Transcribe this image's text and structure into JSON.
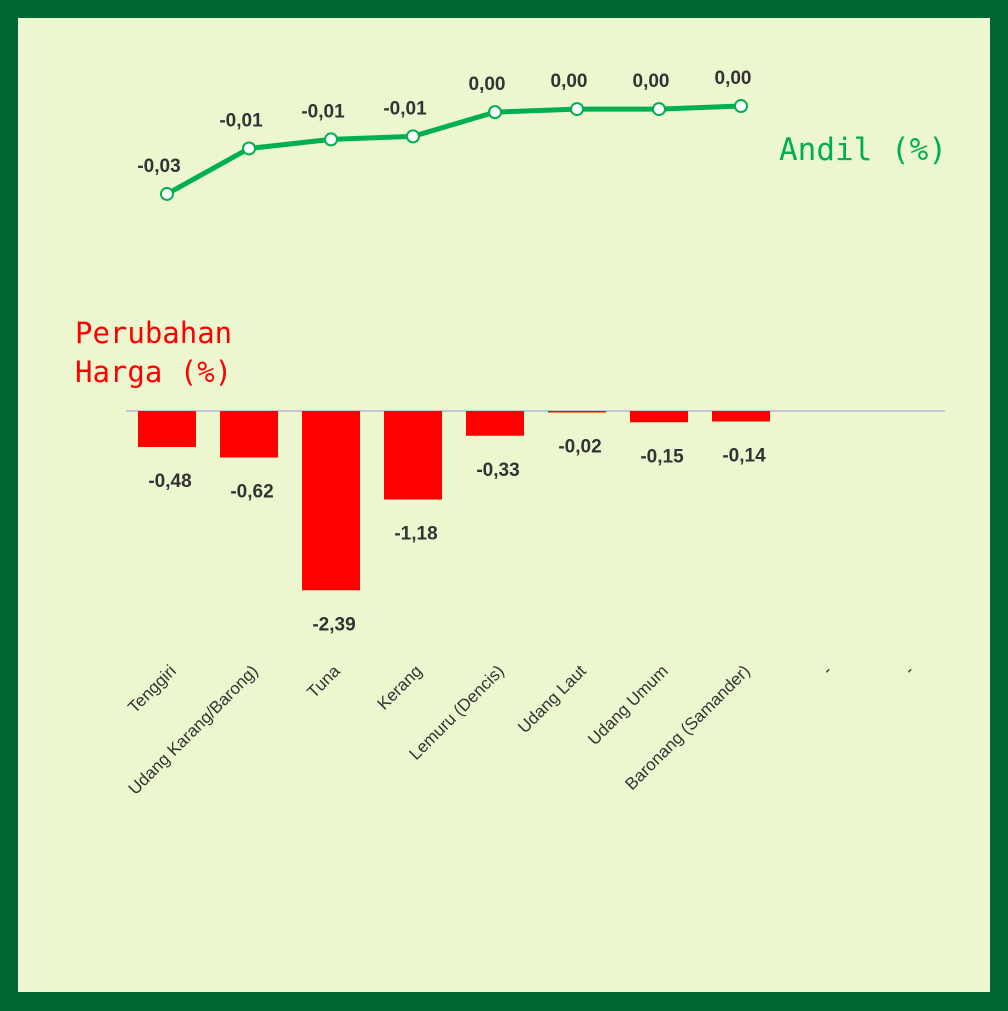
{
  "chart_data": [
    {
      "type": "line",
      "title": "Andil (%)",
      "color": "#00b050",
      "values": [
        -0.03,
        -0.015,
        -0.012,
        -0.011,
        -0.003,
        -0.002,
        -0.002,
        -0.001,
        null,
        null
      ],
      "value_labels": [
        "-0,03",
        "-0,01",
        "-0,01",
        "-0,01",
        "0,00",
        "0,00",
        "0,00",
        "0,00",
        null,
        null
      ],
      "ylim": [
        -0.032,
        0.001
      ]
    },
    {
      "type": "bar",
      "title": [
        "Perubahan",
        "Harga (%)"
      ],
      "color": "#ff0000",
      "categories": [
        "Tenggiri",
        "Udang Karang/Barong)",
        "Tuna",
        "Kerang",
        "Lemuru (Dencis)",
        "Udang Laut",
        "Udang Umum",
        "Baronang (Samander)",
        "-",
        "-"
      ],
      "values": [
        -0.48,
        -0.62,
        -2.39,
        -1.18,
        -0.33,
        -0.02,
        -0.15,
        -0.14,
        null,
        null
      ],
      "value_labels": [
        "-0,48",
        "-0,62",
        "-2,39",
        "-1,18",
        "-0,33",
        "-0,02",
        "-0,15",
        "-0,14",
        null,
        null
      ],
      "ylim": [
        -2.5,
        0
      ]
    }
  ]
}
